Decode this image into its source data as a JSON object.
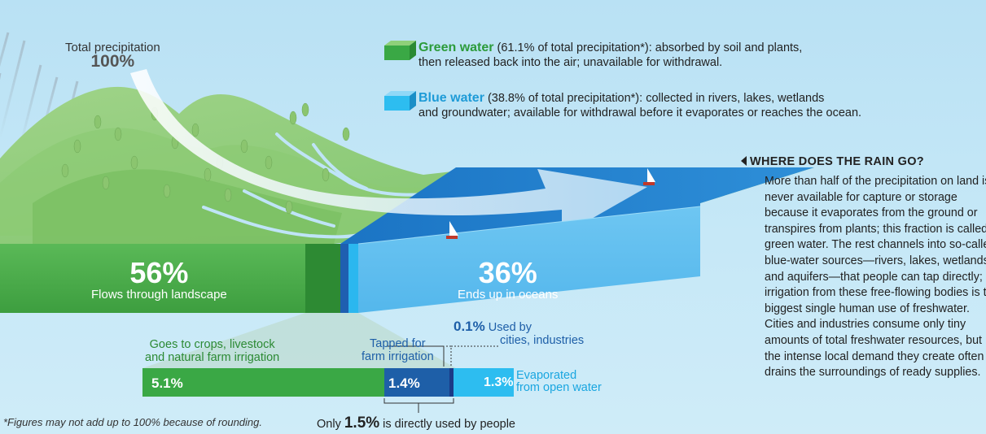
{
  "precipitation": {
    "label": "Total precipitation",
    "percent": "100%"
  },
  "legend": {
    "green": {
      "name": "Green water",
      "line1": " (61.1% of total precipitation*): absorbed by soil and plants,",
      "line2": "then released back into the air; unavailable for withdrawal."
    },
    "blue": {
      "name": "Blue water",
      "line1": " (38.8% of total precipitation*): collected in rivers, lakes, wetlands",
      "line2": "and groundwater; available for withdrawal before it evaporates or reaches the ocean."
    }
  },
  "landscape": {
    "percent": "56%",
    "label": "Flows through landscape"
  },
  "oceans": {
    "percent": "36%",
    "label": "Ends up in oceans"
  },
  "breakdown": {
    "crops_label_1": "Goes to crops, livestock",
    "crops_label_2": "and natural farm irrigation",
    "crops_value": "5.1%",
    "farm_label_1": "Tapped for",
    "farm_label_2": "farm irrigation",
    "farm_value": "1.4%",
    "cities_value": "0.1%",
    "cities_label_1": "Used by",
    "cities_label_2": "cities, industries",
    "evap_value": "1.3%",
    "evap_label_1": "Evaporated",
    "evap_label_2": "from open water"
  },
  "footnote": "*Figures may not add up to 100% because of rounding.",
  "summary": {
    "prefix": "Only ",
    "value": "1.5%",
    "suffix": " is directly used by people"
  },
  "sidebar": {
    "heading": "WHERE DOES THE RAIN GO?",
    "text": "More than half of the precipitation on land is never available for capture or storage because it evaporates from the ground or transpires from plants; this fraction is called green water. The rest channels into so-called blue-water sources—rivers, lakes, wetlands and aquifers—that people can tap directly; irrigation from these free-flowing bodies is the biggest single human use of freshwater. Cities and industries consume only tiny amounts of total freshwater resources, but the intense local demand they create often drains the surroundings of ready supplies."
  },
  "colors": {
    "green_water": "#3aa845",
    "blue_water": "#1e9bd7",
    "dark_blue": "#1e5fa8",
    "cyan": "#2dbdf0"
  }
}
